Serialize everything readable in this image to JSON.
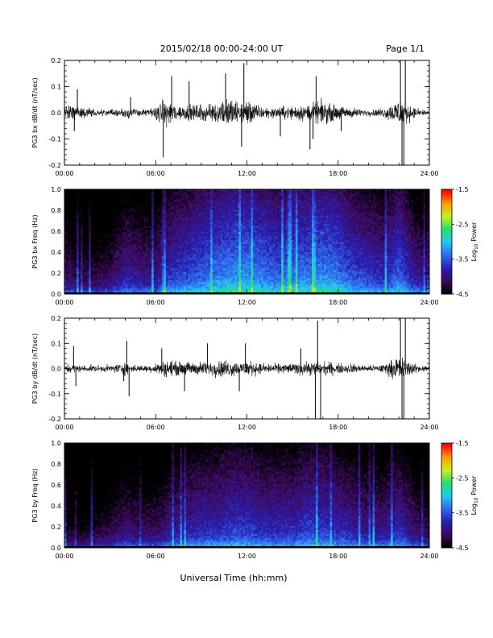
{
  "header": {
    "title": "2015/02/18  00:00-24:00 UT",
    "page": "Page 1/1"
  },
  "footer": {
    "xlabel": "Universal Time (hh:mm)"
  },
  "colors": {
    "trace": "#000000",
    "colormap": [
      "#000000",
      "#3c0a5c",
      "#2a1fb0",
      "#2f6cf0",
      "#26c7f0",
      "#20e070",
      "#c8f020",
      "#ff9a00",
      "#ff0000"
    ]
  },
  "chart_data": [
    {
      "type": "line",
      "ylabel": "PG3 bx dB/dt (nT/sec)",
      "x_ticks": [
        "00:00",
        "06:00",
        "12:00",
        "18:00",
        "24:00"
      ],
      "xlim": [
        0,
        24
      ],
      "ylim": [
        -0.2,
        0.2
      ],
      "y_ticks": [
        "0.2",
        "0.1",
        "0.0",
        "-0.1",
        "-0.2"
      ],
      "y_tick_values": [
        0.2,
        0.1,
        0.0,
        -0.1,
        -0.2
      ],
      "envelope": {
        "x": [
          0,
          0.5,
          1.0,
          1.5,
          2.0,
          2.5,
          3.0,
          3.5,
          4.0,
          4.5,
          5.0,
          5.5,
          6.0,
          6.5,
          7.0,
          7.5,
          8.0,
          8.5,
          9.0,
          9.5,
          10.0,
          10.5,
          11.0,
          11.5,
          12.0,
          12.5,
          13.0,
          13.5,
          14.0,
          14.5,
          15.0,
          15.5,
          16.0,
          16.5,
          17.0,
          17.5,
          18.0,
          18.5,
          19.0,
          19.5,
          20.0,
          20.5,
          21.0,
          21.5,
          22.0,
          22.5,
          23.0,
          23.5,
          24.0
        ],
        "amplitude": [
          0.04,
          0.05,
          0.04,
          0.03,
          0.02,
          0.02,
          0.02,
          0.02,
          0.03,
          0.03,
          0.02,
          0.02,
          0.04,
          0.07,
          0.07,
          0.05,
          0.04,
          0.05,
          0.05,
          0.05,
          0.06,
          0.08,
          0.08,
          0.06,
          0.08,
          0.05,
          0.04,
          0.03,
          0.03,
          0.04,
          0.04,
          0.05,
          0.05,
          0.06,
          0.07,
          0.05,
          0.04,
          0.03,
          0.03,
          0.02,
          0.02,
          0.02,
          0.03,
          0.05,
          0.09,
          0.06,
          0.03,
          0.02,
          0.02
        ]
      },
      "spikes": [
        {
          "x": 0.65,
          "y": -0.07
        },
        {
          "x": 0.85,
          "y": 0.09
        },
        {
          "x": 4.35,
          "y": 0.06
        },
        {
          "x": 6.5,
          "y": -0.17
        },
        {
          "x": 7.05,
          "y": 0.14
        },
        {
          "x": 8.2,
          "y": 0.12
        },
        {
          "x": 10.6,
          "y": 0.15
        },
        {
          "x": 11.65,
          "y": -0.13
        },
        {
          "x": 11.8,
          "y": 0.19
        },
        {
          "x": 14.2,
          "y": -0.09
        },
        {
          "x": 16.15,
          "y": -0.14
        },
        {
          "x": 16.35,
          "y": -0.1
        },
        {
          "x": 16.55,
          "y": 0.14
        },
        {
          "x": 18.2,
          "y": -0.07
        },
        {
          "x": 22.1,
          "y": 0.2
        },
        {
          "x": 22.2,
          "y": -0.2
        },
        {
          "x": 22.32,
          "y": -0.2
        },
        {
          "x": 22.42,
          "y": 0.2
        }
      ]
    },
    {
      "type": "heatmap",
      "ylabel": "PG3 bx Freq (Hz)",
      "x_ticks": [
        "00:00",
        "06:00",
        "12:00",
        "18:00",
        "24:00"
      ],
      "xlim": [
        0,
        24
      ],
      "ylim": [
        0,
        1.0
      ],
      "y_ticks": [
        "1.0",
        "0.8",
        "0.6",
        "0.4",
        "0.2",
        "0.0"
      ],
      "y_tick_values": [
        1.0,
        0.8,
        0.6,
        0.4,
        0.2,
        0.0
      ],
      "colorbar": {
        "label": "Log10 Power",
        "label_main": "Log",
        "label_sub": "10",
        "label_rest": " Power",
        "range": [
          -4.5,
          -1.5
        ],
        "ticks": [
          "-1.5",
          "-2.5",
          "-3.5",
          "-4.5"
        ],
        "tick_values": [
          -1.5,
          -2.5,
          -3.5,
          -4.5
        ]
      },
      "activity_x": [
        0,
        1,
        2,
        3,
        4,
        5,
        6,
        7,
        8,
        9,
        10,
        11,
        12,
        13,
        14,
        15,
        16,
        17,
        18,
        19,
        20,
        21,
        22,
        23,
        24
      ],
      "activity": [
        -3.9,
        -4.1,
        -4.1,
        -4.0,
        -3.7,
        -3.8,
        -3.8,
        -3.5,
        -3.4,
        -3.3,
        -3.2,
        -3.1,
        -3.1,
        -3.2,
        -3.3,
        -3.2,
        -3.2,
        -3.1,
        -3.2,
        -3.4,
        -3.5,
        -3.6,
        -3.3,
        -3.7,
        -3.9
      ]
    },
    {
      "type": "line",
      "ylabel": "PG3 by dB/dt (nT/sec)",
      "x_ticks": [
        "00:00",
        "06:00",
        "12:00",
        "18:00",
        "24:00"
      ],
      "xlim": [
        0,
        24
      ],
      "ylim": [
        -0.2,
        0.2
      ],
      "y_ticks": [
        "0.2",
        "0.1",
        "0.0",
        "-0.1",
        "-0.2"
      ],
      "y_tick_values": [
        0.2,
        0.1,
        0.0,
        -0.1,
        -0.2
      ],
      "envelope": {
        "x": [
          0,
          0.5,
          1.0,
          1.5,
          2.0,
          2.5,
          3.0,
          3.5,
          4.0,
          4.5,
          5.0,
          5.5,
          6.0,
          6.5,
          7.0,
          7.5,
          8.0,
          8.5,
          9.0,
          9.5,
          10.0,
          10.5,
          11.0,
          11.5,
          12.0,
          12.5,
          13.0,
          13.5,
          14.0,
          14.5,
          15.0,
          15.5,
          16.0,
          16.5,
          17.0,
          17.5,
          18.0,
          18.5,
          19.0,
          19.5,
          20.0,
          20.5,
          21.0,
          21.5,
          22.0,
          22.5,
          23.0,
          23.5,
          24.0
        ],
        "amplitude": [
          0.03,
          0.03,
          0.02,
          0.02,
          0.02,
          0.02,
          0.02,
          0.03,
          0.04,
          0.02,
          0.02,
          0.02,
          0.03,
          0.05,
          0.05,
          0.04,
          0.04,
          0.04,
          0.04,
          0.04,
          0.05,
          0.05,
          0.05,
          0.04,
          0.05,
          0.04,
          0.03,
          0.03,
          0.03,
          0.03,
          0.03,
          0.04,
          0.04,
          0.04,
          0.04,
          0.04,
          0.03,
          0.03,
          0.03,
          0.02,
          0.02,
          0.02,
          0.03,
          0.05,
          0.08,
          0.05,
          0.03,
          0.02,
          0.02
        ]
      },
      "spikes": [
        {
          "x": 0.6,
          "y": 0.09
        },
        {
          "x": 0.75,
          "y": -0.07
        },
        {
          "x": 3.9,
          "y": -0.05
        },
        {
          "x": 4.1,
          "y": 0.11
        },
        {
          "x": 4.25,
          "y": -0.11
        },
        {
          "x": 6.4,
          "y": 0.08
        },
        {
          "x": 7.9,
          "y": -0.09
        },
        {
          "x": 9.4,
          "y": 0.1
        },
        {
          "x": 11.5,
          "y": -0.09
        },
        {
          "x": 11.9,
          "y": 0.1
        },
        {
          "x": 15.55,
          "y": 0.08
        },
        {
          "x": 16.5,
          "y": -0.2
        },
        {
          "x": 16.65,
          "y": 0.19
        },
        {
          "x": 16.85,
          "y": -0.2
        },
        {
          "x": 22.1,
          "y": 0.2
        },
        {
          "x": 22.2,
          "y": -0.2
        },
        {
          "x": 22.32,
          "y": -0.2
        },
        {
          "x": 22.42,
          "y": 0.2
        }
      ]
    },
    {
      "type": "heatmap",
      "ylabel": "PG3 by Freq (Hz)",
      "x_ticks": [
        "00:00",
        "06:00",
        "12:00",
        "18:00",
        "24:00"
      ],
      "xlim": [
        0,
        24
      ],
      "ylim": [
        0,
        1.0
      ],
      "y_ticks": [
        "1.0",
        "0.8",
        "0.6",
        "0.4",
        "0.2",
        "0.0"
      ],
      "y_tick_values": [
        1.0,
        0.8,
        0.6,
        0.4,
        0.2,
        0.0
      ],
      "colorbar": {
        "label": "Log10 Power",
        "label_main": "Log",
        "label_sub": "10",
        "label_rest": " Power",
        "range": [
          -4.5,
          -1.5
        ],
        "ticks": [
          "-1.5",
          "-2.5",
          "-3.5",
          "-4.5"
        ],
        "tick_values": [
          -1.5,
          -2.5,
          -3.5,
          -4.5
        ]
      },
      "activity_x": [
        0,
        1,
        2,
        3,
        4,
        5,
        6,
        7,
        8,
        9,
        10,
        11,
        12,
        13,
        14,
        15,
        16,
        17,
        18,
        19,
        20,
        21,
        22,
        23,
        24
      ],
      "activity": [
        -4.2,
        -4.3,
        -4.2,
        -4.1,
        -3.9,
        -4.0,
        -4.0,
        -3.8,
        -3.7,
        -3.6,
        -3.6,
        -3.5,
        -3.5,
        -3.6,
        -3.6,
        -3.6,
        -3.5,
        -3.5,
        -3.6,
        -3.7,
        -3.8,
        -3.8,
        -3.6,
        -3.9,
        -4.1
      ]
    }
  ]
}
